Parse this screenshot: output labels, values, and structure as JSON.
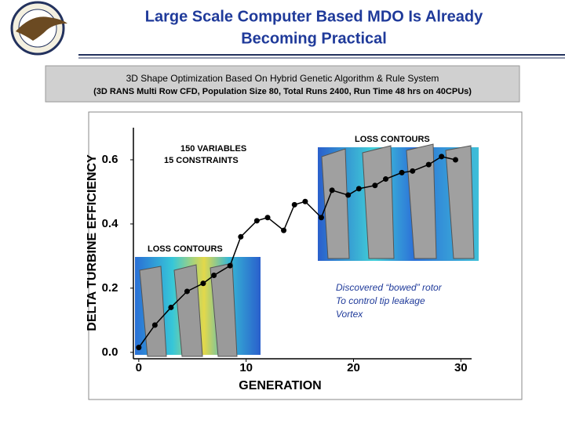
{
  "header": {
    "title_lines": [
      "Large Scale Computer Based MDO Is Already",
      "Becoming Practical"
    ]
  },
  "chart_data": {
    "type": "line",
    "title": "3D Shape Optimization Based On Hybrid Genetic Algorithm & Rule System",
    "subtitle": "(3D RANS Multi Row CFD,  Population Size 80, Total Runs 2400, Run Time 48 hrs on 40CPUs)",
    "x_label": "GENERATION",
    "y_label": "DELTA TURBINE EFFICIENCY",
    "x": [
      0,
      1.5,
      3,
      4.5,
      6,
      7,
      8.5,
      9.5,
      11,
      12,
      13.5,
      14.5,
      15.5,
      17,
      18,
      19.5,
      20.5,
      22,
      23,
      24.5,
      25.5,
      27,
      28.2,
      29.5
    ],
    "series": [
      {
        "name": null,
        "color": "#000000",
        "values": [
          0.015,
          0.085,
          0.14,
          0.19,
          0.215,
          0.24,
          0.27,
          0.36,
          0.41,
          0.42,
          0.38,
          0.46,
          0.47,
          0.42,
          0.505,
          0.49,
          0.51,
          0.52,
          0.54,
          0.56,
          0.565,
          0.585,
          0.61,
          0.6
        ]
      }
    ],
    "xlim": [
      -0.5,
      31
    ],
    "xticks": [
      0,
      10,
      20,
      30
    ],
    "ylim": [
      -0.02,
      0.7
    ],
    "yticks": [
      {
        "value": 0,
        "label": "0.0"
      },
      0.2,
      0.4,
      0.6
    ],
    "annotations": [
      "150  VARIABLES",
      "15   CONSTRAINTS",
      "LOSS CONTOURS",
      "LOSS CONTOURS",
      "Discovered “bowed” rotor",
      "To control tip leakage",
      "Vortex"
    ]
  }
}
